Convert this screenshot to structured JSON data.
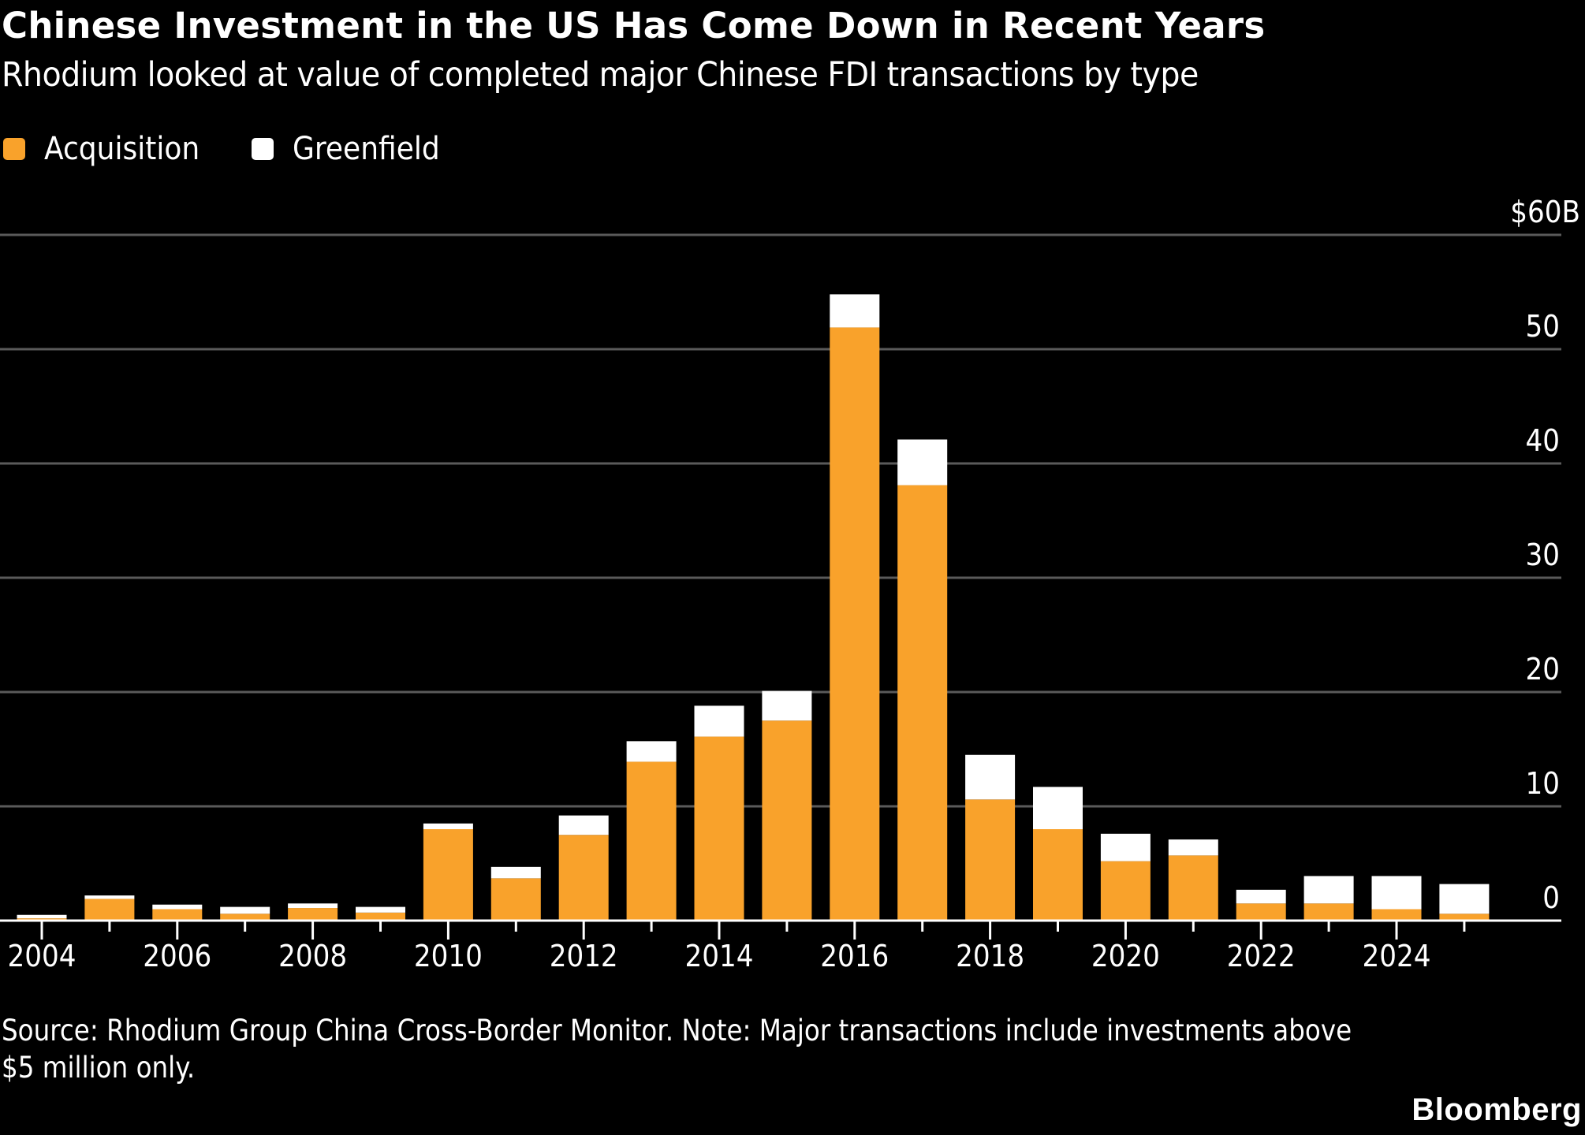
{
  "header": {
    "title": "Chinese Investment in the US Has Come Down in Recent Years",
    "subtitle": "Rhodium looked at value of completed major Chinese FDI transactions by type"
  },
  "legend": [
    {
      "label": "Acquisition",
      "color": "#F9A22B"
    },
    {
      "label": "Greenfield",
      "color": "#FFFFFF"
    }
  ],
  "footer": {
    "source_line1": "Source: Rhodium Group China Cross-Border Monitor. Note: Major transactions include investments above",
    "source_line2": "$5 million only.",
    "logo": "Bloomberg"
  },
  "chart_data": {
    "type": "bar",
    "stacked": true,
    "title": "Chinese Investment in the US Has Come Down in Recent Years",
    "subtitle": "Rhodium looked at value of completed major Chinese FDI transactions by type",
    "xlabel": "",
    "ylabel": "",
    "ylim": [
      0,
      60
    ],
    "yticks": [
      0,
      10,
      20,
      30,
      40,
      50,
      60
    ],
    "ytick_labels": [
      "0",
      "10",
      "20",
      "30",
      "40",
      "50",
      "$60B"
    ],
    "y_axis_side": "right",
    "grid": true,
    "legend_position": "top-left",
    "categories": [
      "2004",
      "2005",
      "2006",
      "2007",
      "2008",
      "2009",
      "2010",
      "2011",
      "2012",
      "2013",
      "2014",
      "2015",
      "2016",
      "2017",
      "2018",
      "2019",
      "2020",
      "2021",
      "2022",
      "2023",
      "2024",
      "2025"
    ],
    "xtick_labels": [
      "2004",
      "2006",
      "2008",
      "2010",
      "2012",
      "2014",
      "2016",
      "2018",
      "2020",
      "2022",
      "2024"
    ],
    "series": [
      {
        "name": "Acquisition",
        "color": "#F9A22B",
        "values": [
          0.2,
          1.9,
          1.0,
          0.6,
          1.1,
          0.7,
          8.0,
          3.7,
          7.5,
          13.9,
          16.1,
          17.5,
          51.9,
          38.1,
          10.6,
          8.0,
          5.2,
          5.7,
          1.5,
          1.5,
          1.0,
          0.6
        ]
      },
      {
        "name": "Greenfield",
        "color": "#FFFFFF",
        "values": [
          0.3,
          0.3,
          0.4,
          0.6,
          0.4,
          0.5,
          0.5,
          1.0,
          1.7,
          1.8,
          2.7,
          2.6,
          2.9,
          4.0,
          3.9,
          3.7,
          2.4,
          1.4,
          1.2,
          2.4,
          2.9,
          2.6
        ]
      }
    ]
  }
}
